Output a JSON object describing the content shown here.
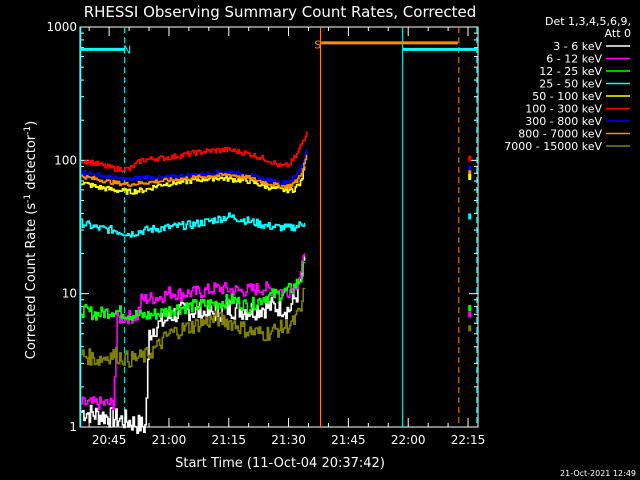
{
  "chart_data": {
    "type": "line",
    "title": "RHESSI Observing Summary Count Rates, Corrected",
    "xlabel": "Start Time (11-Oct-04 20:37:42)",
    "ylabel_main": "Corrected Count Rate (s",
    "ylabel_sup1": "-1",
    "ylabel_mid": " detector",
    "ylabel_sup2": "-1",
    "ylabel_end": ")",
    "y_scale": "log",
    "ylim": [
      1,
      1000
    ],
    "xlim_minutes": [
      37.7,
      137.5
    ],
    "x_ticks": [
      {
        "label": "20:45",
        "min": 45
      },
      {
        "label": "21:00",
        "min": 60
      },
      {
        "label": "21:15",
        "min": 75
      },
      {
        "label": "21:30",
        "min": 90
      },
      {
        "label": "21:45",
        "min": 105
      },
      {
        "label": "22:00",
        "min": 120
      },
      {
        "label": "22:15",
        "min": 135
      }
    ],
    "y_ticks": [
      {
        "label": "1",
        "v": 1
      },
      {
        "label": "10",
        "v": 10
      },
      {
        "label": "100",
        "v": 100
      },
      {
        "label": "1000",
        "v": 1000
      }
    ],
    "legend_header": [
      "Det 1,3,4,5,6,9,",
      "Att 0"
    ],
    "legend_position": "top-right, outside plot",
    "series": [
      {
        "name": "3 - 6 keV",
        "color": "#ffffff",
        "x": [
          38,
          44,
          50,
          54,
          55,
          56,
          58,
          61,
          65,
          70,
          75,
          80,
          85,
          88,
          90,
          92,
          93,
          94
        ],
        "y": [
          1.3,
          1.2,
          1.1,
          1.0,
          5.0,
          5.5,
          6.0,
          7.0,
          7.5,
          7.0,
          7.8,
          7.5,
          8.0,
          8.0,
          7.5,
          10,
          13,
          19
        ]
      },
      {
        "name": "6 - 12 keV",
        "color": "#ff00ff",
        "x": [
          38,
          44,
          46,
          47,
          52,
          53,
          58,
          60,
          63,
          68,
          72,
          78,
          84,
          88,
          90,
          92,
          93,
          94
        ],
        "y": [
          1.5,
          1.5,
          1.5,
          6.5,
          6.8,
          9.0,
          9.5,
          10.2,
          10.0,
          10.3,
          11,
          10.5,
          11,
          10.5,
          10.5,
          12,
          14,
          20
        ]
      },
      {
        "name": "12 - 25 keV",
        "color": "#00ff00",
        "x": [
          38,
          42,
          46,
          50,
          54,
          58,
          62,
          68,
          72,
          76,
          80,
          84,
          88,
          91,
          93,
          94
        ],
        "y": [
          7.5,
          7.0,
          7.5,
          7.0,
          6.8,
          7.2,
          7.8,
          8.2,
          8.5,
          9.0,
          8.0,
          9.5,
          10,
          11,
          13,
          17
        ]
      },
      {
        "name": "25 - 50 keV",
        "color": "#00ffff",
        "x": [
          38,
          42,
          46,
          50,
          54,
          58,
          62,
          66,
          70,
          75,
          80,
          85,
          90,
          92,
          94
        ],
        "y": [
          34,
          31,
          30,
          28,
          30,
          31,
          32,
          33,
          35,
          38,
          35,
          32,
          31,
          32,
          34
        ]
      },
      {
        "name": "50 - 100 keV",
        "color": "#ffff00",
        "x": [
          38,
          42,
          46,
          50,
          54,
          58,
          62,
          68,
          72,
          76,
          80,
          84,
          88,
          91,
          93,
          94
        ],
        "y": [
          68,
          63,
          60,
          58,
          60,
          66,
          68,
          72,
          74,
          72,
          70,
          64,
          60,
          60,
          68,
          90
        ]
      },
      {
        "name": "100 - 300 keV",
        "color": "#ff0000",
        "x": [
          38,
          41,
          44,
          47,
          50,
          53,
          56,
          60,
          65,
          70,
          75,
          80,
          85,
          88,
          90,
          92,
          93.5,
          94.5
        ],
        "y": [
          100,
          96,
          90,
          86,
          86,
          100,
          103,
          105,
          112,
          118,
          120,
          112,
          100,
          90,
          92,
          110,
          140,
          165
        ]
      },
      {
        "name": "300 - 800 keV",
        "color": "#0000ff",
        "x": [
          38,
          42,
          46,
          50,
          54,
          58,
          62,
          66,
          70,
          75,
          80,
          84,
          88,
          90,
          92,
          93.5,
          94.5
        ],
        "y": [
          82,
          78,
          74,
          72,
          75,
          74,
          76,
          78,
          80,
          82,
          78,
          72,
          68,
          70,
          78,
          95,
          120
        ]
      },
      {
        "name": "800 - 7000 keV",
        "color": "#ff8c00",
        "x": [
          38,
          42,
          46,
          50,
          54,
          58,
          62,
          66,
          70,
          75,
          80,
          84,
          88,
          90,
          92,
          93.5,
          94.5
        ],
        "y": [
          76,
          72,
          68,
          66,
          68,
          70,
          72,
          74,
          76,
          78,
          74,
          68,
          64,
          64,
          70,
          85,
          110
        ]
      },
      {
        "name": "7000 - 15000 keV",
        "color": "#808000",
        "x": [
          38,
          42,
          46,
          50,
          54,
          57,
          60,
          64,
          68,
          72,
          76,
          80,
          84,
          88,
          91,
          93,
          94
        ],
        "y": [
          3.5,
          3.2,
          3.5,
          3.2,
          3.4,
          4.0,
          5.0,
          5.5,
          6.0,
          6.5,
          6.0,
          5.2,
          5.0,
          5.5,
          6.0,
          7.5,
          11
        ]
      }
    ],
    "tail_points": [
      {
        "series": 5,
        "min": 135.3,
        "v": 103
      },
      {
        "series": 6,
        "min": 135.3,
        "v": 86
      },
      {
        "series": 7,
        "min": 135.3,
        "v": 80
      },
      {
        "series": 4,
        "min": 135.3,
        "v": 75
      },
      {
        "series": 3,
        "min": 135.3,
        "v": 38
      },
      {
        "series": 2,
        "min": 135.3,
        "v": 7.8
      },
      {
        "series": 1,
        "min": 135.3,
        "v": 7.0
      },
      {
        "series": 8,
        "min": 135.3,
        "v": 5.5
      }
    ],
    "annotations": [
      {
        "text": "N",
        "color": "#00ffff",
        "min": 49.5,
        "v": 680
      },
      {
        "text": "S",
        "color": "#ff8c00",
        "min": 97.3,
        "v": 740
      }
    ],
    "bars": [
      {
        "color": "#00ffff",
        "from": 37.7,
        "to": 48.8,
        "v": 680
      },
      {
        "color": "#ff8c00",
        "from": 98.2,
        "to": 132.5,
        "v": 760
      },
      {
        "color": "#00ffff",
        "from": 118.6,
        "to": 137.5,
        "v": 680
      }
    ],
    "vlines": [
      {
        "color": "#00ffff",
        "min": 37.9,
        "dash": false
      },
      {
        "color": "#00ffff",
        "min": 48.9,
        "dash": true
      },
      {
        "color": "#ff8c00",
        "min": 98.0,
        "dash": false
      },
      {
        "color": "#00ffff",
        "min": 118.6,
        "dash": false
      },
      {
        "color": "#ff8c00",
        "min": 132.7,
        "dash": true
      },
      {
        "color": "#00ffff",
        "min": 137.2,
        "dash": true
      }
    ]
  },
  "footer": {
    "timestamp": "21-Oct-2021 12:49"
  }
}
